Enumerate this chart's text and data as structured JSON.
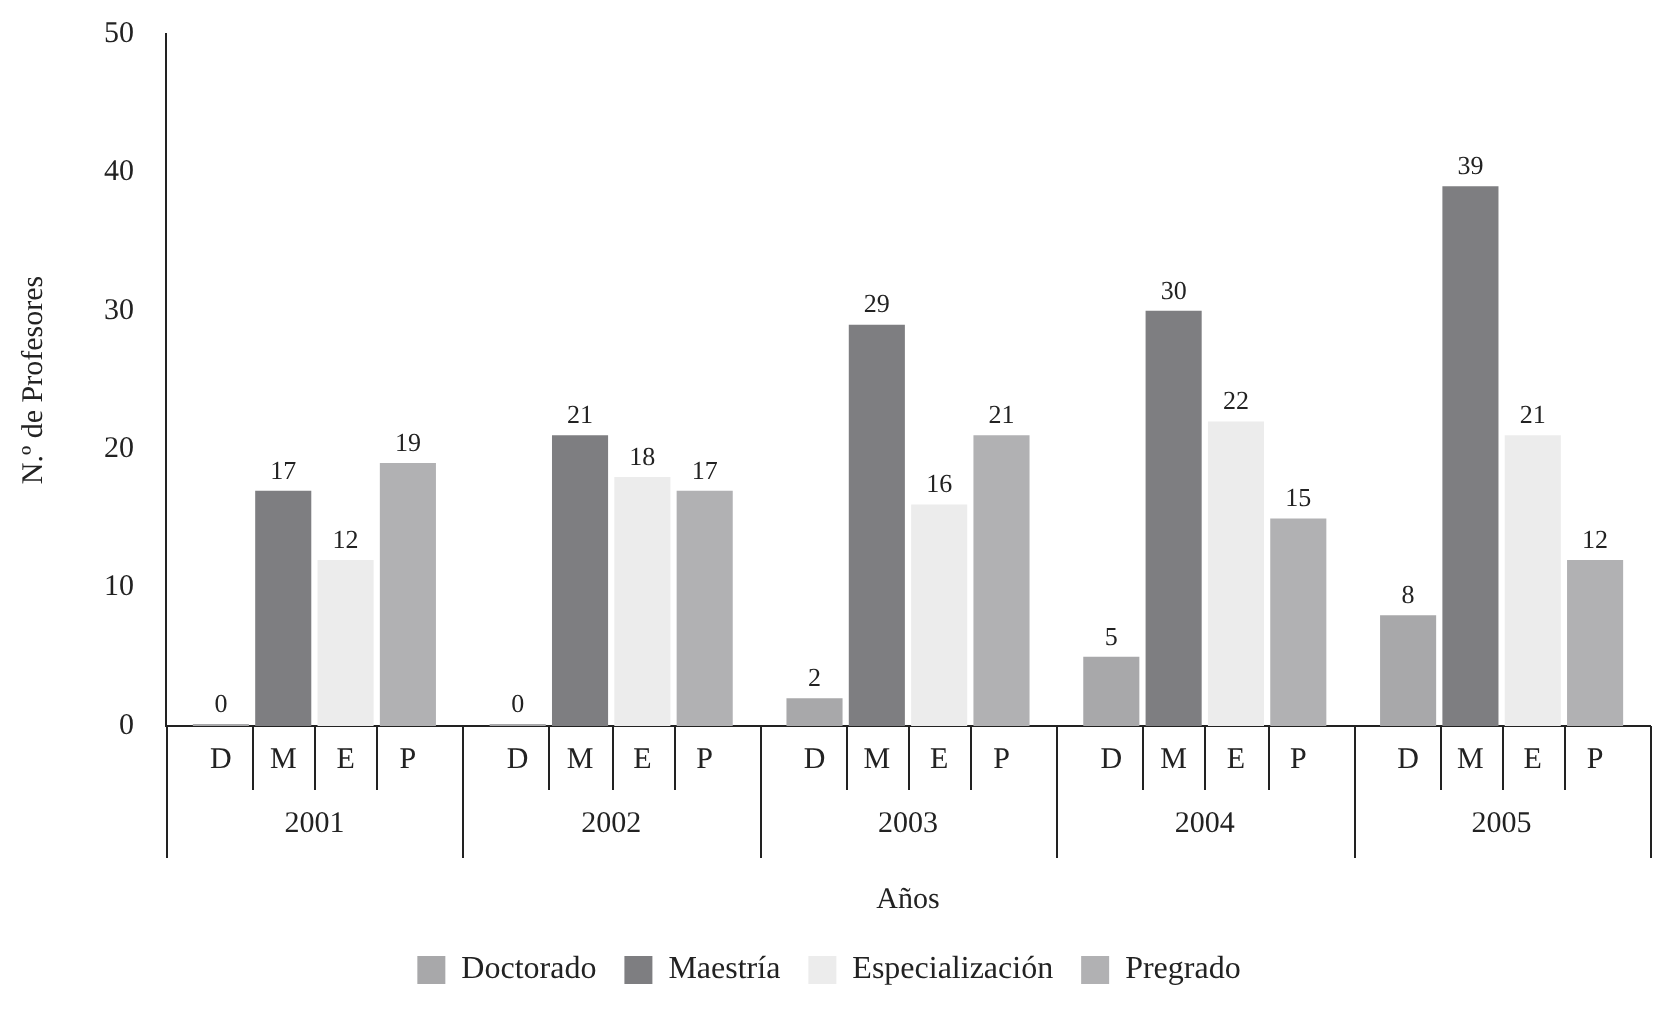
{
  "chart_data": {
    "type": "bar",
    "xlabel": "Años",
    "ylabel": "N.º de Profesores",
    "categories": [
      "2001",
      "2002",
      "2003",
      "2004",
      "2005"
    ],
    "series": [
      {
        "name": "Doctorado",
        "color": "#a8a8aa",
        "values": [
          0,
          0,
          2,
          5,
          8
        ]
      },
      {
        "name": "Maestría",
        "color": "#7e7e81",
        "values": [
          17,
          21,
          29,
          30,
          39
        ]
      },
      {
        "name": "Especialización",
        "color": "#ececec",
        "values": [
          12,
          18,
          16,
          22,
          21
        ]
      },
      {
        "name": "Pregrado",
        "color": "#b1b1b3",
        "values": [
          19,
          17,
          21,
          15,
          12
        ]
      }
    ],
    "annotations": [
      "D",
      "M",
      "E",
      "P"
    ],
    "ylim": [
      0,
      50
    ],
    "yticks": [
      0,
      10,
      20,
      30,
      40,
      50
    ],
    "grid": false,
    "legend": "bottom",
    "data_labels": true
  }
}
